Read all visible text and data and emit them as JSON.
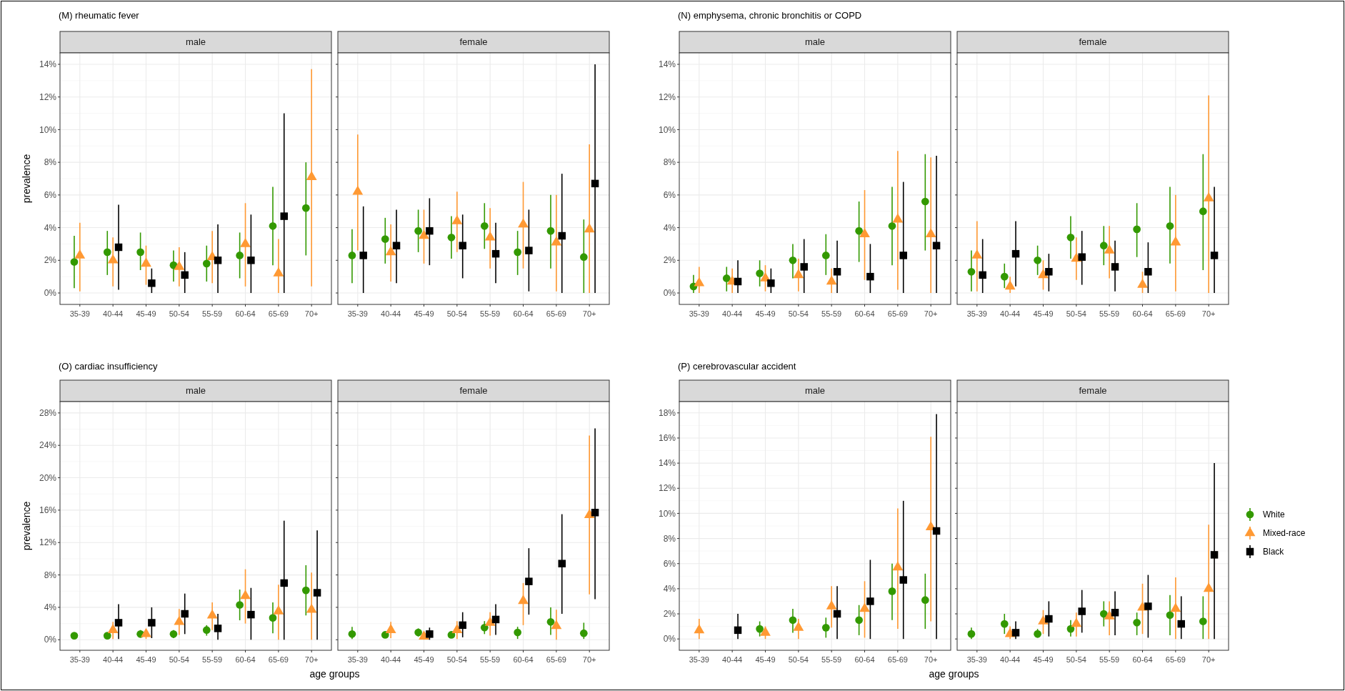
{
  "chart_data": [
    {
      "type": "scatter",
      "title": "(M) rheumatic fever",
      "subtitle": "male",
      "ylabel": "prevalence",
      "categories": [
        "35-39",
        "40-44",
        "45-49",
        "50-54",
        "55-59",
        "60-64",
        "65-69",
        "70+"
      ],
      "ylim": [
        -0.7,
        14.7
      ],
      "yticks": [
        {
          "value": 0,
          "label": "0%"
        },
        {
          "value": 2,
          "label": "2%"
        },
        {
          "value": 4,
          "label": "4%"
        },
        {
          "value": 6,
          "label": "6%"
        },
        {
          "value": 8,
          "label": "8%"
        },
        {
          "value": 10,
          "label": "10%"
        },
        {
          "value": 12,
          "label": "12%"
        },
        {
          "value": 14,
          "label": "14%"
        }
      ],
      "grid": true,
      "series": [
        {
          "color": "#339900",
          "marker": "circle",
          "values": [
            1.9,
            2.5,
            2.5,
            1.7,
            1.8,
            2.3,
            4.1,
            5.2
          ],
          "errors": [
            [
              0.3,
              3.5
            ],
            [
              1.1,
              3.8
            ],
            [
              1.4,
              3.7
            ],
            [
              0.7,
              2.6
            ],
            [
              0.7,
              2.9
            ],
            [
              0.9,
              3.7
            ],
            [
              1.7,
              6.5
            ],
            [
              2.3,
              8.0
            ]
          ]
        },
        {
          "color": "#ff9933",
          "marker": "triangle",
          "values": [
            2.3,
            2.0,
            1.8,
            1.6,
            2.2,
            3.0,
            1.2,
            7.1
          ],
          "errors": [
            [
              0.1,
              4.3
            ],
            [
              0.4,
              3.4
            ],
            [
              0.5,
              2.9
            ],
            [
              0.4,
              2.8
            ],
            [
              0.6,
              3.8
            ],
            [
              0.4,
              5.5
            ],
            [
              0,
              3.3
            ],
            [
              0.4,
              13.7
            ]
          ]
        },
        {
          "color": "#000000",
          "marker": "square",
          "values": [
            null,
            2.8,
            0.6,
            1.1,
            2.0,
            2.0,
            4.7,
            null
          ],
          "errors": [
            null,
            [
              0.2,
              5.4
            ],
            [
              0,
              1.5
            ],
            [
              0,
              2.5
            ],
            [
              0,
              4.2
            ],
            [
              0,
              4.8
            ],
            [
              0,
              11.0
            ],
            null
          ]
        }
      ]
    },
    {
      "type": "scatter",
      "subtitle": "female",
      "categories": [
        "35-39",
        "40-44",
        "45-49",
        "50-54",
        "55-59",
        "60-64",
        "65-69",
        "70+"
      ],
      "ylim": [
        -0.7,
        14.7
      ],
      "yticks": [
        {
          "value": 0,
          "label": null
        },
        {
          "value": 2,
          "label": null
        },
        {
          "value": 4,
          "label": null
        },
        {
          "value": 6,
          "label": null
        },
        {
          "value": 8,
          "label": null
        },
        {
          "value": 10,
          "label": null
        },
        {
          "value": 12,
          "label": null
        },
        {
          "value": 14,
          "label": null
        }
      ],
      "grid": true,
      "tick_labels": "x",
      "series": [
        {
          "color": "#339900",
          "marker": "circle",
          "values": [
            2.3,
            3.3,
            3.8,
            3.4,
            4.1,
            2.5,
            3.8,
            2.2
          ],
          "errors": [
            [
              0.6,
              3.9
            ],
            [
              1.8,
              4.6
            ],
            [
              2.5,
              5.1
            ],
            [
              2.1,
              4.7
            ],
            [
              2.7,
              5.5
            ],
            [
              1.1,
              3.8
            ],
            [
              1.5,
              6.0
            ],
            [
              0,
              4.5
            ]
          ]
        },
        {
          "color": "#ff9933",
          "marker": "triangle",
          "values": [
            6.2,
            2.5,
            3.5,
            4.4,
            3.4,
            4.2,
            3.1,
            3.9
          ],
          "errors": [
            [
              2.6,
              9.7
            ],
            [
              0.7,
              4.2
            ],
            [
              1.8,
              5.1
            ],
            [
              2.5,
              6.2
            ],
            [
              1.5,
              5.2
            ],
            [
              1.5,
              6.8
            ],
            [
              0.1,
              6.0
            ],
            [
              0,
              9.1
            ]
          ]
        },
        {
          "color": "#000000",
          "marker": "square",
          "values": [
            2.3,
            2.9,
            3.8,
            2.9,
            2.4,
            2.6,
            3.5,
            6.7
          ],
          "errors": [
            [
              0,
              5.3
            ],
            [
              0.6,
              5.1
            ],
            [
              1.7,
              5.8
            ],
            [
              0.9,
              4.8
            ],
            [
              0.6,
              4.3
            ],
            [
              0.1,
              5.1
            ],
            [
              0,
              7.3
            ],
            [
              0,
              14.0
            ]
          ]
        }
      ]
    },
    {
      "type": "scatter",
      "title": "(N) emphysema, chronic bronchitis or COPD",
      "subtitle": "male",
      "categories": [
        "35-39",
        "40-44",
        "45-49",
        "50-54",
        "55-59",
        "60-64",
        "65-69",
        "70+"
      ],
      "ylim": [
        -0.7,
        14.7
      ],
      "yticks": [
        {
          "value": 0,
          "label": "0%"
        },
        {
          "value": 2,
          "label": "2%"
        },
        {
          "value": 4,
          "label": "4%"
        },
        {
          "value": 6,
          "label": "6%"
        },
        {
          "value": 8,
          "label": "8%"
        },
        {
          "value": 10,
          "label": "10%"
        },
        {
          "value": 12,
          "label": "12%"
        },
        {
          "value": 14,
          "label": "14%"
        }
      ],
      "grid": true,
      "series": [
        {
          "color": "#339900",
          "marker": "circle",
          "values": [
            0.4,
            0.9,
            1.2,
            2.0,
            2.3,
            3.8,
            4.1,
            5.6
          ],
          "errors": [
            [
              0,
              1.1
            ],
            [
              0.1,
              1.6
            ],
            [
              0.4,
              2.0
            ],
            [
              0.9,
              3.0
            ],
            [
              1.1,
              3.6
            ],
            [
              1.9,
              5.6
            ],
            [
              1.7,
              6.5
            ],
            [
              2.6,
              8.5
            ]
          ]
        },
        {
          "color": "#ff9933",
          "marker": "triangle",
          "values": [
            0.6,
            0.7,
            0.9,
            1.1,
            0.7,
            3.6,
            4.5,
            3.6
          ],
          "errors": [
            [
              0,
              1.6
            ],
            [
              0,
              1.5
            ],
            [
              0.1,
              1.7
            ],
            [
              0.1,
              2.1
            ],
            [
              0,
              1.5
            ],
            [
              0.8,
              6.3
            ],
            [
              0.2,
              8.7
            ],
            [
              0,
              8.3
            ]
          ]
        },
        {
          "color": "#000000",
          "marker": "square",
          "values": [
            null,
            0.7,
            0.6,
            1.6,
            1.3,
            1.0,
            2.3,
            2.9
          ],
          "errors": [
            null,
            [
              0,
              2.0
            ],
            [
              0,
              1.5
            ],
            [
              0,
              3.3
            ],
            [
              0,
              3.2
            ],
            [
              0,
              3.0
            ],
            [
              0,
              6.8
            ],
            [
              0,
              8.4
            ]
          ]
        }
      ]
    },
    {
      "type": "scatter",
      "subtitle": "female",
      "categories": [
        "35-39",
        "40-44",
        "45-49",
        "50-54",
        "55-59",
        "60-64",
        "65-69",
        "70+"
      ],
      "ylim": [
        -0.7,
        14.7
      ],
      "yticks": [
        {
          "value": 0,
          "label": null
        },
        {
          "value": 2,
          "label": null
        },
        {
          "value": 4,
          "label": null
        },
        {
          "value": 6,
          "label": null
        },
        {
          "value": 8,
          "label": null
        },
        {
          "value": 10,
          "label": null
        },
        {
          "value": 12,
          "label": null
        },
        {
          "value": 14,
          "label": null
        }
      ],
      "grid": true,
      "tick_labels": "x",
      "series": [
        {
          "color": "#339900",
          "marker": "circle",
          "values": [
            1.3,
            1.0,
            2.0,
            3.4,
            2.9,
            3.9,
            4.1,
            5.0
          ],
          "errors": [
            [
              0.1,
              2.6
            ],
            [
              0.3,
              1.8
            ],
            [
              1.1,
              2.9
            ],
            [
              2.1,
              4.7
            ],
            [
              1.7,
              4.1
            ],
            [
              2.2,
              5.5
            ],
            [
              1.8,
              6.5
            ],
            [
              1.4,
              8.5
            ]
          ]
        },
        {
          "color": "#ff9933",
          "marker": "triangle",
          "values": [
            2.3,
            0.4,
            1.1,
            2.1,
            2.6,
            0.5,
            3.1,
            5.8
          ],
          "errors": [
            [
              0.1,
              4.4
            ],
            [
              0,
              1.0
            ],
            [
              0.2,
              2.0
            ],
            [
              0.8,
              3.4
            ],
            [
              0.9,
              4.1
            ],
            [
              0,
              1.3
            ],
            [
              0.1,
              6.0
            ],
            [
              0,
              12.1
            ]
          ]
        },
        {
          "color": "#000000",
          "marker": "square",
          "values": [
            1.1,
            2.4,
            1.3,
            2.2,
            1.6,
            1.3,
            null,
            2.3
          ],
          "errors": [
            [
              0,
              3.3
            ],
            [
              0.4,
              4.4
            ],
            [
              0.1,
              2.4
            ],
            [
              0.5,
              3.8
            ],
            [
              0.1,
              3.2
            ],
            [
              0,
              3.1
            ],
            null,
            [
              0,
              6.5
            ]
          ]
        }
      ]
    },
    {
      "type": "scatter",
      "title": "(O) cardiac insufficiency",
      "subtitle": "male",
      "ylabel": "prevalence",
      "xlabel": "age groups",
      "categories": [
        "35-39",
        "40-44",
        "45-49",
        "50-54",
        "55-59",
        "60-64",
        "65-69",
        "70+"
      ],
      "ylim": [
        -1.3,
        29.4
      ],
      "yticks": [
        {
          "value": 0,
          "label": "0%"
        },
        {
          "value": 4,
          "label": "4%"
        },
        {
          "value": 8,
          "label": "8%"
        },
        {
          "value": 12,
          "label": "12%"
        },
        {
          "value": 16,
          "label": "16%"
        },
        {
          "value": 20,
          "label": "20%"
        },
        {
          "value": 24,
          "label": "24%"
        },
        {
          "value": 28,
          "label": "28%"
        }
      ],
      "grid": true,
      "series": [
        {
          "color": "#339900",
          "marker": "circle",
          "values": [
            0.5,
            0.5,
            0.7,
            0.7,
            1.2,
            4.3,
            2.7,
            6.1
          ],
          "errors": [
            [
              0.2,
              0.9
            ],
            [
              0.1,
              0.8
            ],
            [
              0.3,
              1.2
            ],
            [
              0.2,
              1.2
            ],
            [
              0.5,
              1.8
            ],
            [
              2.4,
              6.2
            ],
            [
              0.8,
              4.6
            ],
            [
              3.0,
              9.2
            ]
          ]
        },
        {
          "color": "#ff9933",
          "marker": "triangle",
          "values": [
            null,
            1.2,
            0.7,
            2.2,
            3.0,
            5.4,
            3.5,
            3.7
          ],
          "errors": [
            null,
            [
              0.1,
              2.2
            ],
            [
              0.1,
              1.3
            ],
            [
              0.6,
              3.8
            ],
            [
              1.2,
              4.6
            ],
            [
              2.0,
              8.7
            ],
            [
              0,
              6.8
            ],
            [
              0,
              8.3
            ]
          ]
        },
        {
          "color": "#000000",
          "marker": "square",
          "values": [
            null,
            2.1,
            2.1,
            3.2,
            1.4,
            3.1,
            7.0,
            5.8
          ],
          "errors": [
            null,
            [
              0.1,
              4.4
            ],
            [
              0.2,
              4.0
            ],
            [
              0.7,
              5.7
            ],
            [
              0,
              3.2
            ],
            [
              0,
              6.4
            ],
            [
              0,
              14.7
            ],
            [
              0,
              13.5
            ]
          ]
        }
      ]
    },
    {
      "type": "scatter",
      "subtitle": "female",
      "categories": [
        "35-39",
        "40-44",
        "45-49",
        "50-54",
        "55-59",
        "60-64",
        "65-69",
        "70+"
      ],
      "ylim": [
        -1.3,
        29.4
      ],
      "yticks": [
        {
          "value": 0,
          "label": null
        },
        {
          "value": 4,
          "label": null
        },
        {
          "value": 8,
          "label": null
        },
        {
          "value": 12,
          "label": null
        },
        {
          "value": 16,
          "label": null
        },
        {
          "value": 20,
          "label": null
        },
        {
          "value": 24,
          "label": null
        },
        {
          "value": 28,
          "label": null
        }
      ],
      "grid": true,
      "tick_labels": "x",
      "series": [
        {
          "color": "#339900",
          "marker": "circle",
          "values": [
            0.7,
            0.6,
            0.9,
            0.6,
            1.5,
            0.9,
            2.2,
            0.8
          ],
          "errors": [
            [
              0.1,
              1.6
            ],
            [
              0.2,
              0.9
            ],
            [
              0.4,
              1.4
            ],
            [
              0.2,
              1.0
            ],
            [
              0.7,
              2.3
            ],
            [
              0.1,
              1.6
            ],
            [
              0.6,
              4.0
            ],
            [
              0.1,
              2.1
            ]
          ]
        },
        {
          "color": "#ff9933",
          "marker": "triangle",
          "values": [
            null,
            1.2,
            0.4,
            1.2,
            2.1,
            4.8,
            1.7,
            15.4
          ],
          "errors": [
            null,
            [
              0.2,
              2.2
            ],
            [
              0,
              1.0
            ],
            [
              0.1,
              2.3
            ],
            [
              0.5,
              3.4
            ],
            [
              1.8,
              7.0
            ],
            [
              0,
              3.7
            ],
            [
              5.6,
              25.2
            ]
          ]
        },
        {
          "color": "#000000",
          "marker": "square",
          "values": [
            null,
            null,
            0.7,
            1.8,
            2.5,
            7.2,
            9.4,
            15.7
          ],
          "errors": [
            null,
            null,
            [
              0,
              1.5
            ],
            [
              0.3,
              3.4
            ],
            [
              0.6,
              4.4
            ],
            [
              3.1,
              11.3
            ],
            [
              3.2,
              15.5
            ],
            [
              5.0,
              26.1
            ]
          ]
        }
      ]
    },
    {
      "type": "scatter",
      "title": "(P) cerebrovascular accident",
      "subtitle": "male",
      "xlabel": "age groups",
      "categories": [
        "35-39",
        "40-44",
        "45-49",
        "50-54",
        "55-59",
        "60-64",
        "65-69",
        "70+"
      ],
      "ylim": [
        -0.9,
        18.9
      ],
      "yticks": [
        {
          "value": 0,
          "label": "0%"
        },
        {
          "value": 2,
          "label": "2%"
        },
        {
          "value": 4,
          "label": "4%"
        },
        {
          "value": 6,
          "label": "6%"
        },
        {
          "value": 8,
          "label": "8%"
        },
        {
          "value": 10,
          "label": "10%"
        },
        {
          "value": 12,
          "label": "12%"
        },
        {
          "value": 14,
          "label": "14%"
        },
        {
          "value": 16,
          "label": "16%"
        },
        {
          "value": 18,
          "label": "18%"
        }
      ],
      "grid": true,
      "series": [
        {
          "color": "#339900",
          "marker": "circle",
          "values": [
            null,
            null,
            0.8,
            1.5,
            0.9,
            1.5,
            3.8,
            3.1
          ],
          "errors": [
            null,
            null,
            [
              0.2,
              1.4
            ],
            [
              0.5,
              2.4
            ],
            [
              0.1,
              1.7
            ],
            [
              0.3,
              2.7
            ],
            [
              1.5,
              6.0
            ],
            [
              0.8,
              5.2
            ]
          ]
        },
        {
          "color": "#ff9933",
          "marker": "triangle",
          "values": [
            0.7,
            null,
            0.5,
            0.9,
            2.6,
            2.4,
            5.7,
            8.9
          ],
          "errors": [
            [
              0,
              1.6
            ],
            null,
            [
              0,
              1.0
            ],
            [
              0,
              1.6
            ],
            [
              0.9,
              4.2
            ],
            [
              0.1,
              4.6
            ],
            [
              0.8,
              10.4
            ],
            [
              1.4,
              16.1
            ]
          ]
        },
        {
          "color": "#000000",
          "marker": "square",
          "values": [
            null,
            0.7,
            null,
            null,
            2.0,
            3.0,
            4.7,
            8.6
          ],
          "errors": [
            null,
            [
              0,
              2.0
            ],
            null,
            null,
            [
              0,
              4.2
            ],
            [
              0,
              6.3
            ],
            [
              0,
              11.0
            ],
            [
              0,
              17.9
            ]
          ]
        }
      ]
    },
    {
      "type": "scatter",
      "subtitle": "female",
      "categories": [
        "35-39",
        "40-44",
        "45-49",
        "50-54",
        "55-59",
        "60-64",
        "65-69",
        "70+"
      ],
      "ylim": [
        -0.9,
        18.9
      ],
      "yticks": [
        {
          "value": 0,
          "label": null
        },
        {
          "value": 2,
          "label": null
        },
        {
          "value": 4,
          "label": null
        },
        {
          "value": 6,
          "label": null
        },
        {
          "value": 8,
          "label": null
        },
        {
          "value": 10,
          "label": null
        },
        {
          "value": 12,
          "label": null
        },
        {
          "value": 14,
          "label": null
        },
        {
          "value": 16,
          "label": null
        },
        {
          "value": 18,
          "label": null
        }
      ],
      "grid": true,
      "tick_labels": "x",
      "legend": "right",
      "series": [
        {
          "name": "White",
          "color": "#339900",
          "marker": "circle",
          "values": [
            0.4,
            1.2,
            0.4,
            0.8,
            2.0,
            1.3,
            1.9,
            1.4
          ],
          "errors": [
            [
              0,
              0.9
            ],
            [
              0.4,
              2.0
            ],
            [
              0.1,
              0.8
            ],
            [
              0.2,
              1.5
            ],
            [
              1.0,
              3.0
            ],
            [
              0.3,
              2.1
            ],
            [
              0.3,
              3.5
            ],
            [
              0,
              3.4
            ]
          ]
        },
        {
          "name": "Mixed-race",
          "color": "#ff9933",
          "marker": "triangle",
          "values": [
            null,
            0.4,
            1.4,
            1.2,
            1.8,
            2.5,
            2.4,
            4.0
          ],
          "errors": [
            null,
            [
              0,
              1.0
            ],
            [
              0.4,
              2.3
            ],
            [
              0.2,
              2.1
            ],
            [
              0.3,
              3.0
            ],
            [
              0.4,
              4.4
            ],
            [
              0,
              4.9
            ],
            [
              0,
              9.1
            ]
          ]
        },
        {
          "name": "Black",
          "color": "#000000",
          "marker": "square",
          "values": [
            null,
            0.5,
            1.6,
            2.2,
            2.1,
            2.6,
            1.2,
            6.7
          ],
          "errors": [
            null,
            [
              0,
              1.4
            ],
            [
              0.2,
              3.0
            ],
            [
              0.5,
              3.9
            ],
            [
              0.3,
              3.8
            ],
            [
              0.1,
              5.1
            ],
            [
              0,
              3.4
            ],
            [
              0,
              14.0
            ]
          ]
        }
      ]
    }
  ]
}
